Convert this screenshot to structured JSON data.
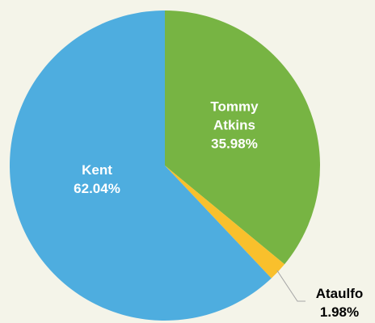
{
  "chart_data": {
    "type": "pie",
    "categories": [
      "Tommy Atkins",
      "Ataulfo",
      "Kent"
    ],
    "values": [
      35.98,
      1.98,
      62.04
    ],
    "value_labels": [
      "35.98%",
      "1.98%",
      "62.04%"
    ],
    "colors": [
      "#77b443",
      "#f9c02c",
      "#4eaddf"
    ]
  }
}
